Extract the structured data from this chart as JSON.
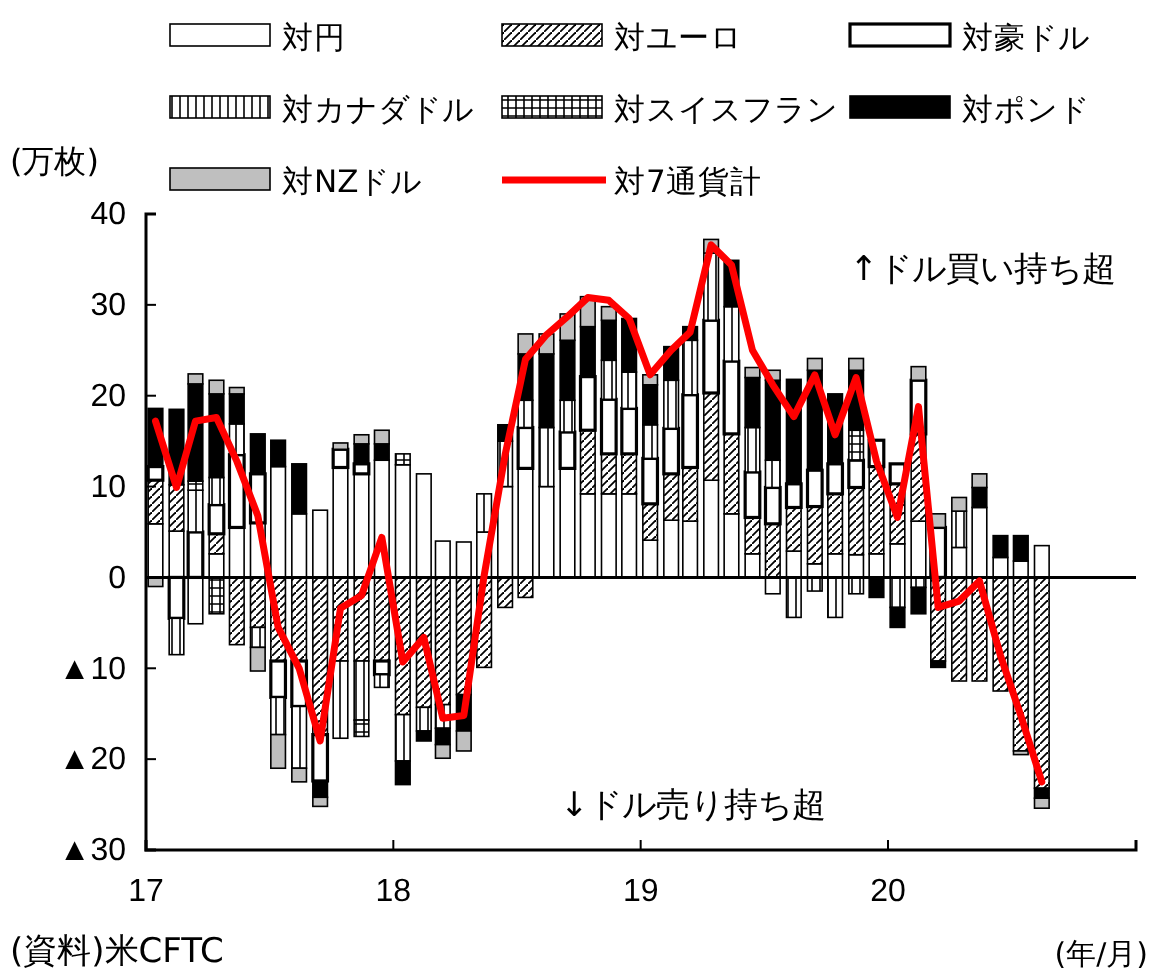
{
  "chart_data": {
    "type": "bar",
    "stacked": true,
    "ylabel": "(万枚)",
    "xlabel": "(年/月)",
    "x": [
      "2017-01-15",
      "2017-02-15",
      "2017-03-15",
      "2017-04-15",
      "2017-05-15",
      "2017-06-15",
      "2017-07-15",
      "2017-08-15",
      "2017-09-15",
      "2017-10-15",
      "2017-11-15",
      "2017-12-15",
      "2018-01-15",
      "2018-02-15",
      "2018-03-15",
      "2018-04-15",
      "2018-05-15",
      "2018-06-15",
      "2018-07-15",
      "2018-08-15",
      "2018-09-15",
      "2018-10-15",
      "2018-11-15",
      "2018-12-15",
      "2019-01-15",
      "2019-02-15",
      "2019-03-15",
      "2019-04-15",
      "2019-05-15",
      "2019-06-15",
      "2019-07-15",
      "2019-08-15",
      "2019-09-15",
      "2019-10-15",
      "2019-11-15",
      "2019-12-15",
      "2020-01-15",
      "2020-02-15",
      "2020-03-15",
      "2020-04-15",
      "2020-05-15",
      "2020-06-15",
      "2020-07-15",
      "2020-08-15"
    ],
    "xlim": [
      "2017-01",
      "2021-01"
    ],
    "xticks": [
      {
        "value": "2017-01",
        "label": "17"
      },
      {
        "value": "2018-01",
        "label": "18"
      },
      {
        "value": "2019-01",
        "label": "19"
      },
      {
        "value": "2020-01",
        "label": "20"
      },
      {
        "value": "2021-01",
        "label": null
      }
    ],
    "ylim": [
      -30,
      40
    ],
    "yticks": [
      {
        "value": -30,
        "label": "▲30"
      },
      {
        "value": -20,
        "label": "▲20"
      },
      {
        "value": -10,
        "label": "▲10"
      },
      0,
      10,
      20,
      30,
      40
    ],
    "legend": "top",
    "grid": false,
    "ref_lines": [
      {
        "axis": "y",
        "value": 0,
        "color": "#000000"
      }
    ],
    "annotations": [
      "↑ドル買い持ち超",
      "↓ドル売り持ち超",
      "(資料)米CFTC"
    ],
    "series": [
      {
        "name": "対円",
        "color": "#ffffff",
        "values": [
          5.9,
          5.1,
          -5.1,
          2.6,
          5.5,
          6,
          12.2,
          7,
          7.4,
          12.1,
          11.4,
          12.9,
          12.4,
          11.4,
          4,
          3.9,
          5,
          10,
          12,
          10,
          12,
          9.2,
          9.2,
          9.2,
          4.1,
          6.3,
          6.2,
          10.7,
          7,
          2.6,
          -1.8,
          2.9,
          1.5,
          2.6,
          2.5,
          2.6,
          3.7,
          6.2,
          0,
          3.3,
          7.7,
          2.2,
          1.8,
          3.5
        ]
      },
      {
        "name": "対ユーロ",
        "color": "#000000",
        "values": [
          4.8,
          5.1,
          0,
          2.2,
          -7.4,
          -5.5,
          -9.2,
          -9.2,
          -17.3,
          -9.2,
          -9.2,
          -9.2,
          -15.1,
          -14.3,
          -14,
          -12.9,
          -9.9,
          -3.3,
          -2.2,
          0,
          0,
          7,
          4.4,
          4.4,
          4,
          5.1,
          5.9,
          9.6,
          8.8,
          4,
          5.9,
          4.8,
          6.3,
          6.6,
          7.4,
          9.6,
          6.6,
          9.6,
          -9.2,
          -11.4,
          -11.4,
          -12.5,
          -19.1,
          -23.2
        ]
      },
      {
        "name": "対豪ドル",
        "color": "#ffffff",
        "values": [
          1.5,
          -4.5,
          5,
          3.2,
          8,
          5.4,
          -4,
          -5,
          -5.1,
          2,
          1.1,
          -1.5,
          0,
          0,
          0,
          0,
          0,
          0,
          4.5,
          0,
          4,
          5.9,
          6,
          5,
          5,
          5,
          8,
          8,
          8,
          5,
          4,
          2.6,
          4,
          3.3,
          3,
          2.9,
          2.2,
          5.9,
          5.5,
          0,
          0,
          0,
          0,
          0
        ]
      },
      {
        "name": "対カナダドル",
        "color": "#000000",
        "values": [
          0,
          -4,
          4.6,
          3,
          3.4,
          -2.2,
          -4.1,
          -6.8,
          0,
          -8.5,
          -6.5,
          -1.4,
          -5.1,
          -2.6,
          -2.6,
          0,
          4.2,
          5,
          3,
          6.5,
          3.5,
          0,
          4.3,
          4,
          3.7,
          5.3,
          6,
          7.4,
          6,
          4.9,
          3,
          -4.4,
          -1.5,
          -4.4,
          -1.8,
          0,
          -3.3,
          -1.1,
          0,
          4,
          0,
          0,
          0,
          0
        ]
      },
      {
        "name": "対スイスフラン",
        "color": "#000000",
        "values": [
          0,
          0,
          1,
          -4,
          0,
          0,
          0,
          0,
          0,
          0,
          -1.8,
          0,
          1.2,
          0,
          0,
          0,
          0,
          0,
          0,
          0,
          0,
          0,
          0,
          0,
          0,
          0,
          0,
          0,
          0,
          0,
          0,
          0,
          0,
          0,
          3.3,
          0,
          0,
          0,
          0,
          0,
          0,
          0,
          0,
          0
        ]
      },
      {
        "name": "対ポンド",
        "color": "#000000",
        "values": [
          6.4,
          8.3,
          10.7,
          9.2,
          3.3,
          4.4,
          2.9,
          5.5,
          -1.8,
          0,
          2.2,
          1.8,
          -2.6,
          -1.1,
          -1.8,
          -4,
          0,
          1.8,
          5.1,
          8.1,
          6.6,
          5.5,
          4.4,
          5.9,
          4.4,
          3.7,
          1.5,
          0,
          5.1,
          5.5,
          8.8,
          11.5,
          11,
          7.7,
          6.6,
          -2.2,
          -2.2,
          -2.9,
          -0.7,
          0,
          2.2,
          2.4,
          2.8,
          -1.1
        ]
      },
      {
        "name": "対NZドル",
        "color": "#bfbfbf",
        "values": [
          -1,
          0,
          1.1,
          1.5,
          0.7,
          -2.6,
          -3.7,
          -1.5,
          -1,
          0.7,
          1,
          1.5,
          0,
          0,
          -1.5,
          -2.2,
          0,
          0,
          2.2,
          2.2,
          2.9,
          3.3,
          1.5,
          0,
          1.1,
          0,
          0,
          1.5,
          0,
          1.1,
          1.1,
          0,
          1.3,
          0,
          1.3,
          0,
          0,
          1.5,
          1.5,
          1.5,
          1.5,
          0,
          -0.4,
          -1.1
        ]
      },
      {
        "name": "対7通貨計",
        "type": "line",
        "color": "#ff0000",
        "values": [
          17.2,
          9.9,
          17.2,
          17.6,
          12.8,
          6.8,
          -5.5,
          -10,
          -18,
          -3.4,
          -2,
          4.4,
          -9.3,
          -6.6,
          -15.5,
          -15.2,
          0.2,
          13.5,
          24,
          26.7,
          28.7,
          30.8,
          30.5,
          28.5,
          22.3,
          25,
          27,
          36.6,
          34.4,
          25,
          21.2,
          17.7,
          22.3,
          15.7,
          22,
          12.8,
          6.6,
          18.8,
          -3.3,
          -2.6,
          -0.4,
          -8.6,
          -15.2,
          -22.5
        ]
      }
    ]
  }
}
